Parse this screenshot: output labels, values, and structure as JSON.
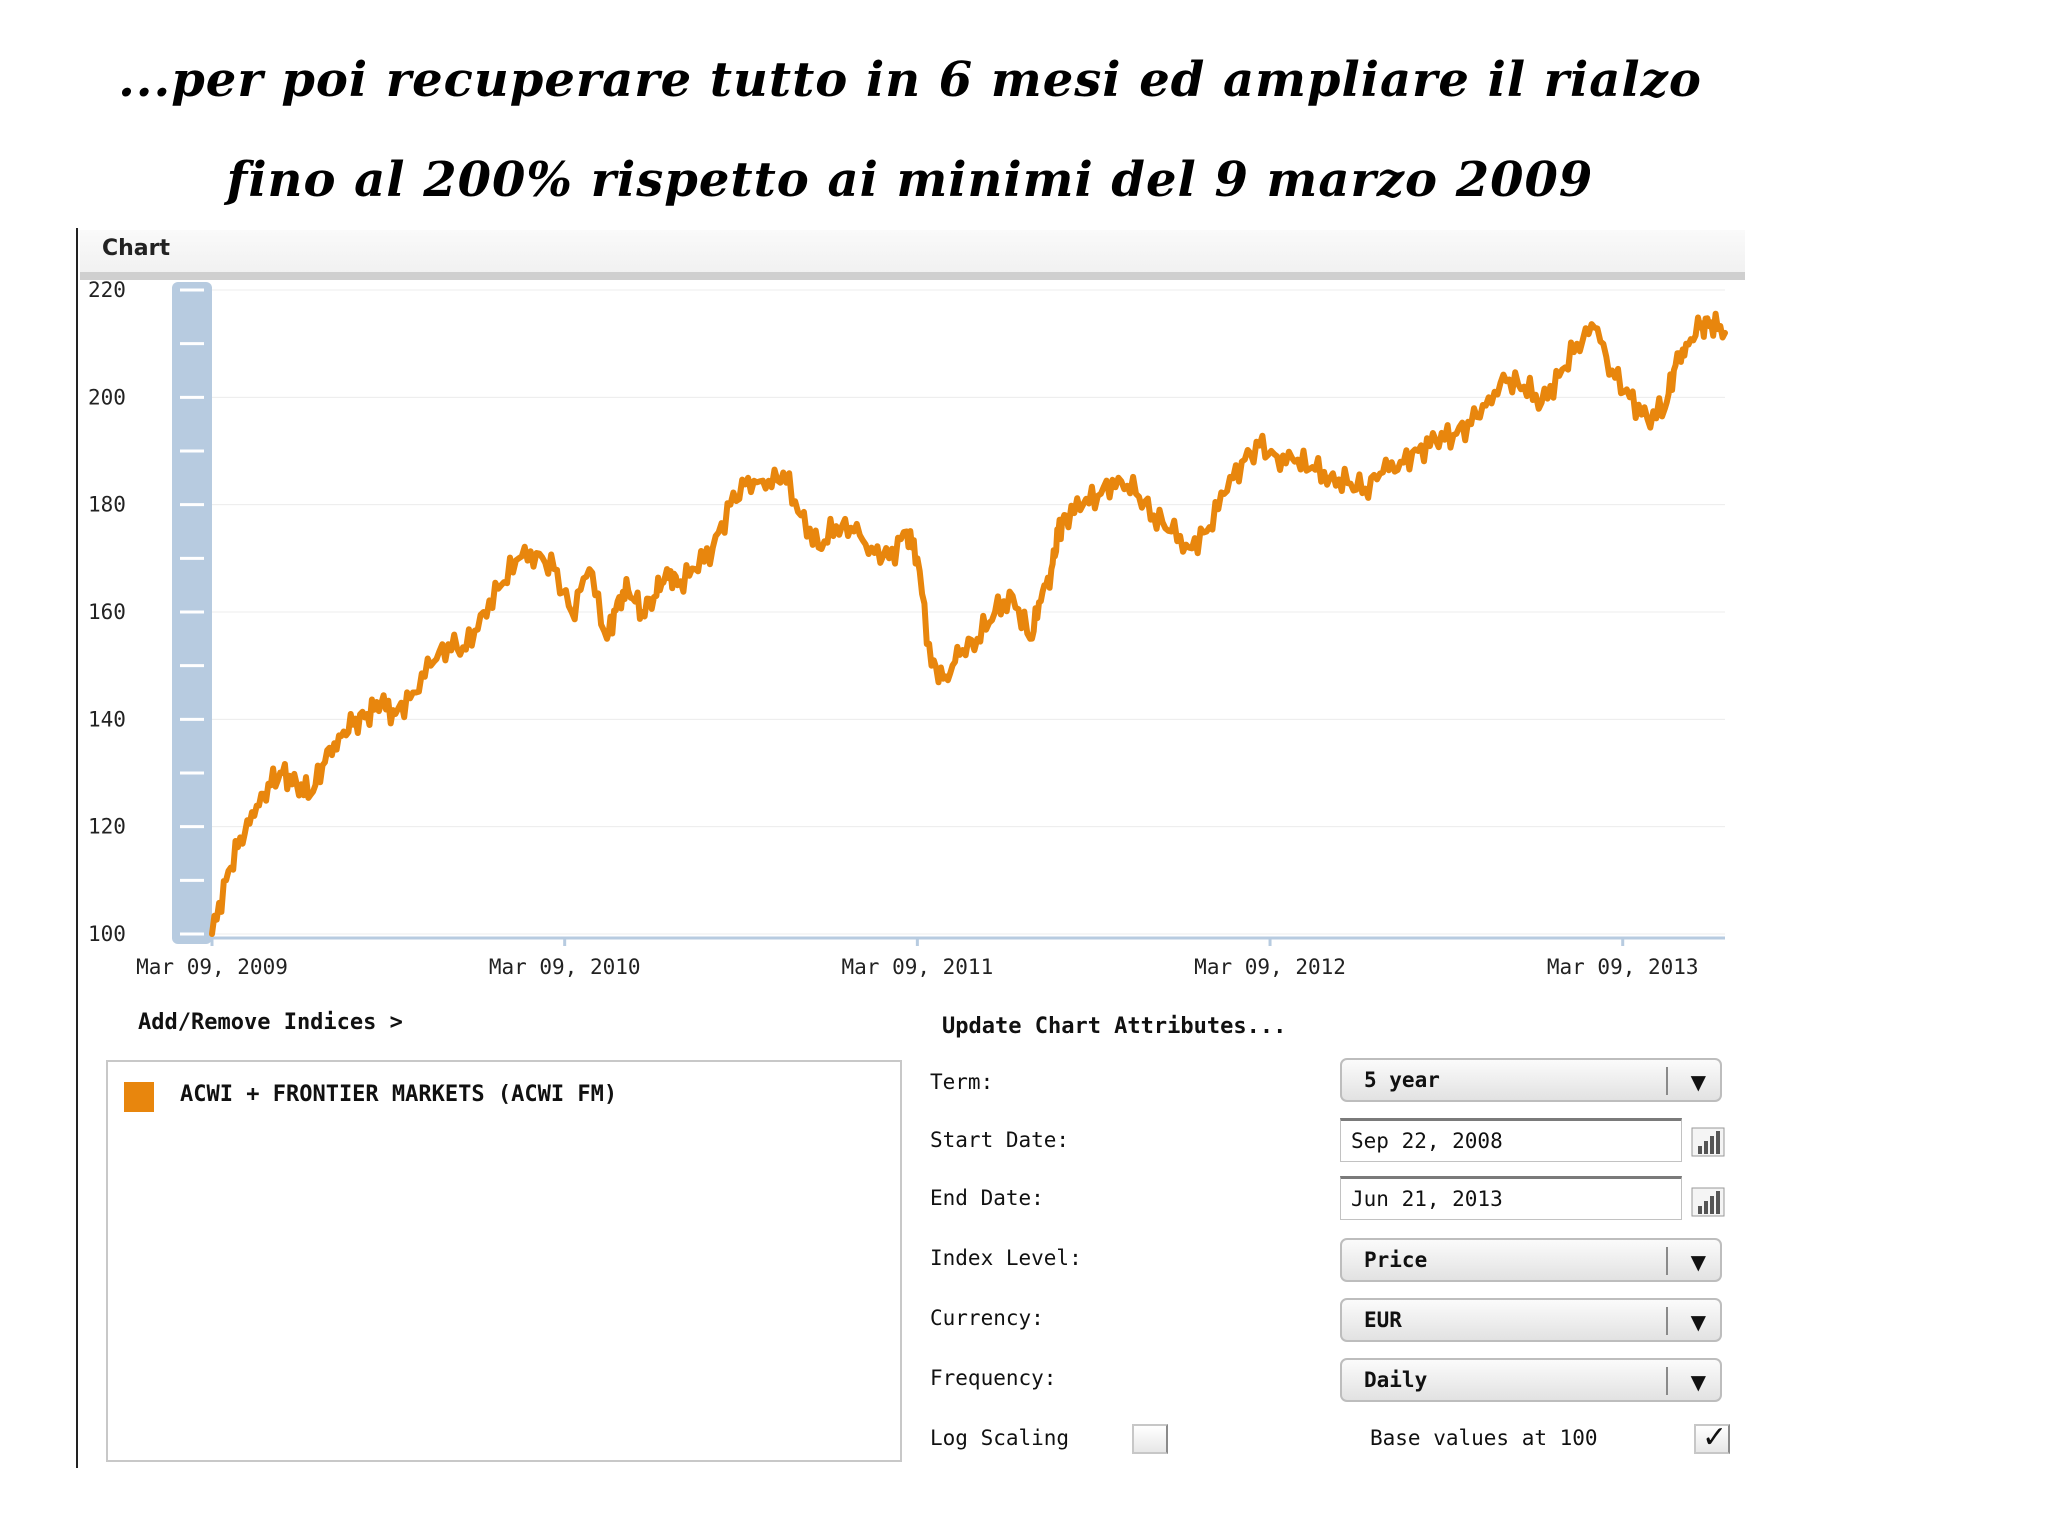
{
  "slide": {
    "title_line1": "...per poi recuperare tutto in 6 mesi ed ampliare il rialzo",
    "title_line2": "fino al 200% rispetto ai minimi del 9 marzo 2009"
  },
  "chart_panel": {
    "header": "Chart"
  },
  "chart_data": {
    "type": "line",
    "title": "",
    "xlabel": "",
    "ylabel": "",
    "ylim": [
      100,
      220
    ],
    "y_ticks": [
      100,
      120,
      140,
      160,
      180,
      200,
      220
    ],
    "x_ticks": [
      "Mar 09, 2009",
      "Mar 09, 2010",
      "Mar 09, 2011",
      "Mar 09, 2012",
      "Mar 09, 2013"
    ],
    "x_range": [
      2009.18,
      2013.47
    ],
    "line_color": "#e8860d",
    "series": [
      {
        "name": "ACWI + FRONTIER MARKETS (ACWI FM)",
        "x": [
          2009.18,
          2009.22,
          2009.26,
          2009.3,
          2009.34,
          2009.38,
          2009.42,
          2009.46,
          2009.5,
          2009.54,
          2009.58,
          2009.62,
          2009.66,
          2009.7,
          2009.75,
          2009.8,
          2009.85,
          2009.9,
          2009.95,
          2010.0,
          2010.05,
          2010.1,
          2010.15,
          2010.2,
          2010.25,
          2010.3,
          2010.33,
          2010.36,
          2010.4,
          2010.44,
          2010.47,
          2010.5,
          2010.55,
          2010.6,
          2010.65,
          2010.7,
          2010.75,
          2010.8,
          2010.85,
          2010.9,
          2010.95,
          2011.0,
          2011.05,
          2011.1,
          2011.15,
          2011.18,
          2011.22,
          2011.26,
          2011.3,
          2011.35,
          2011.4,
          2011.45,
          2011.5,
          2011.53,
          2011.56,
          2011.58,
          2011.6,
          2011.65,
          2011.7,
          2011.75,
          2011.8,
          2011.85,
          2011.9,
          2011.95,
          2012.0,
          2012.05,
          2012.1,
          2012.15,
          2012.2,
          2012.25,
          2012.3,
          2012.35,
          2012.4,
          2012.45,
          2012.5,
          2012.55,
          2012.6,
          2012.65,
          2012.7,
          2012.75,
          2012.8,
          2012.85,
          2012.9,
          2012.95,
          2013.0,
          2013.05,
          2013.1,
          2013.15,
          2013.2,
          2013.25,
          2013.3,
          2013.33,
          2013.36,
          2013.4,
          2013.43,
          2013.47
        ],
        "values": [
          100,
          110,
          118,
          122,
          128,
          130,
          128,
          126,
          132,
          137,
          139,
          141,
          143,
          141,
          145,
          150,
          154,
          153,
          160,
          165,
          170,
          171,
          168,
          160,
          168,
          155,
          162,
          164,
          160,
          163,
          168,
          165,
          168,
          172,
          180,
          185,
          183,
          186,
          178,
          172,
          176,
          175,
          172,
          170,
          175,
          170,
          150,
          148,
          152,
          155,
          160,
          163,
          155,
          162,
          168,
          175,
          178,
          180,
          182,
          185,
          182,
          178,
          175,
          172,
          175,
          182,
          188,
          191,
          189,
          188,
          187,
          185,
          184,
          183,
          186,
          188,
          190,
          192,
          193,
          195,
          200,
          203,
          202,
          199,
          204,
          210,
          213,
          205,
          200,
          196,
          198,
          206,
          210,
          213,
          214,
          212
        ]
      }
    ],
    "y_scroll_label": ""
  },
  "indices": {
    "add_remove_link": "Add/Remove Indices >",
    "items": [
      {
        "label": "ACWI + FRONTIER MARKETS (ACWI FM)",
        "color": "#e8860d"
      }
    ]
  },
  "attributes": {
    "title": "Update Chart Attributes...",
    "term_label": "Term:",
    "term_value": "5 year",
    "start_label": "Start Date:",
    "start_value": "Sep 22, 2008",
    "end_label": "End Date:",
    "end_value": "Jun 21, 2013",
    "index_level_label": "Index Level:",
    "index_level_value": "Price",
    "currency_label": "Currency:",
    "currency_value": "EUR",
    "frequency_label": "Frequency:",
    "frequency_value": "Daily",
    "log_scaling_label": "Log Scaling",
    "log_scaling_checked": false,
    "base_values_label": "Base values at 100",
    "base_values_checked": true
  }
}
